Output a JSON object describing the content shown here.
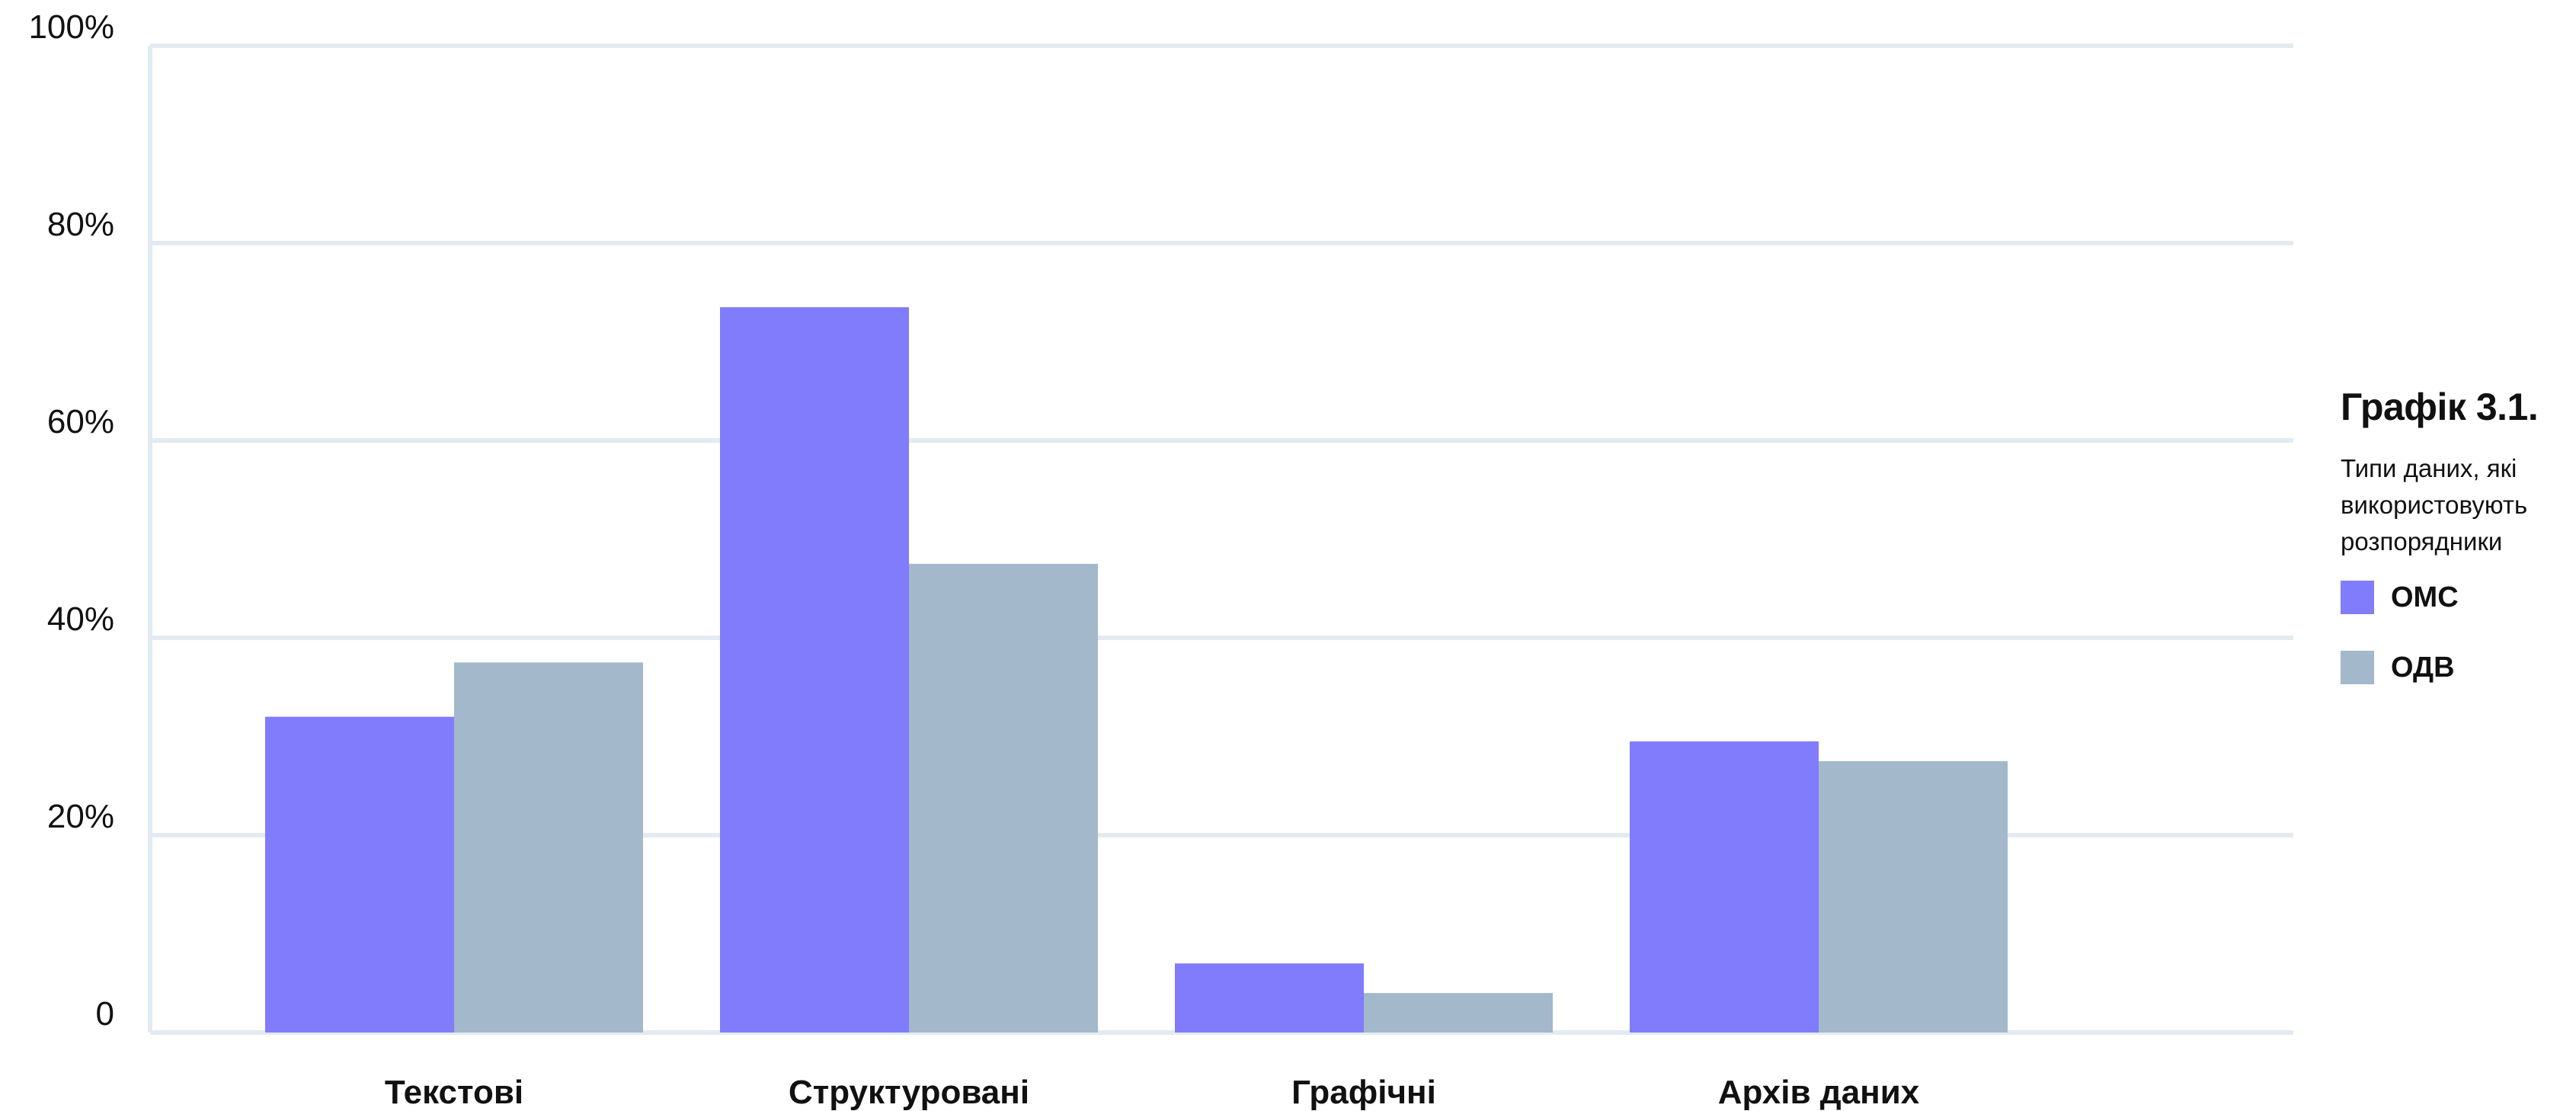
{
  "chart_data": {
    "type": "bar",
    "title": "Графік 3.1.",
    "subtitle": "Типи даних, які використовують розпорядники",
    "categories": [
      "Текстові",
      "Структуровані",
      "Графічні",
      "Архів даних"
    ],
    "series": [
      {
        "name": "ОМС",
        "color": "#807cfc",
        "values": [
          32,
          73.5,
          7,
          29.5
        ]
      },
      {
        "name": "ОДВ",
        "color": "#a3b8ca",
        "values": [
          37.5,
          47.5,
          4,
          27.5
        ]
      }
    ],
    "ylim": [
      0,
      100
    ],
    "yticks": [
      0,
      20,
      40,
      60,
      80,
      100
    ],
    "ytick_labels": [
      "0",
      "20%",
      "40%",
      "60%",
      "80%",
      "100%"
    ],
    "grid": true,
    "grid_color": "#e3ebf1",
    "legend_position": "right"
  }
}
